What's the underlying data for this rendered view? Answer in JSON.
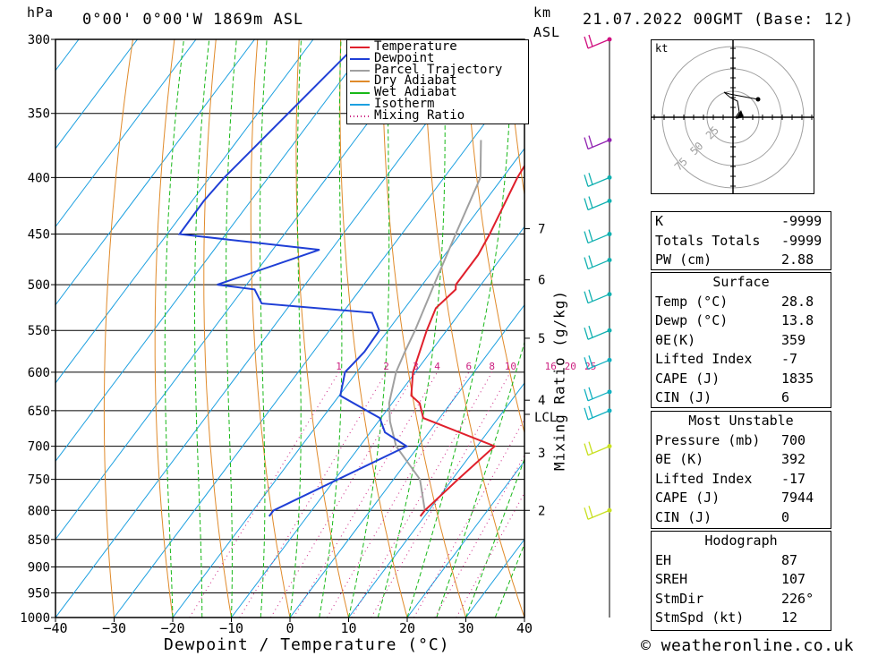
{
  "header": {
    "hpa": "hPa",
    "location": "0°00' 0°00'W 1869m ASL",
    "km": "km",
    "asl": "ASL",
    "datetime": "21.07.2022 00GMT (Base: 12)"
  },
  "footer": {
    "xaxis_label": "Dewpoint / Temperature (°C)",
    "mixing_label": "Mixing Ratio (g/kg)",
    "credit": "© weatheronline.co.uk"
  },
  "colors": {
    "temperature": "#e0202c",
    "dewpoint": "#1f3fd6",
    "parcel": "#a0a0a0",
    "dry_adiabat": "#e08a2a",
    "wet_adiabat": "#18b818",
    "isotherm": "#1ca0e0",
    "mixing": "#cc2080"
  },
  "chart_data": {
    "type": "line",
    "title": "0°00' 0°00'W 1869m ASL",
    "xlabel": "Dewpoint / Temperature (°C)",
    "ylabel": "hPa",
    "xlim": [
      -40,
      40
    ],
    "ylim": [
      1000,
      300
    ],
    "x_ticks": [
      -40,
      -30,
      -20,
      -10,
      0,
      10,
      20,
      30,
      40
    ],
    "p_levels": [
      300,
      350,
      400,
      450,
      500,
      550,
      600,
      650,
      700,
      750,
      800,
      850,
      900,
      950,
      1000
    ],
    "legend": [
      "Temperature",
      "Dewpoint",
      "Parcel Trajectory",
      "Dry Adiabat",
      "Wet Adiabat",
      "Isotherm",
      "Mixing Ratio"
    ],
    "series": [
      {
        "name": "Temperature",
        "points": [
          [
            -18.4,
            370
          ],
          [
            -17.5,
            400
          ],
          [
            -15,
            450
          ],
          [
            -14.3,
            470
          ],
          [
            -14.3,
            500
          ],
          [
            -13.7,
            505
          ],
          [
            -14.7,
            525
          ],
          [
            -13.4,
            550
          ],
          [
            -10.4,
            600
          ],
          [
            -7.7,
            630
          ],
          [
            -5.3,
            640
          ],
          [
            -2.8,
            660
          ],
          [
            13,
            700
          ],
          [
            11,
            750
          ],
          [
            9.3,
            800
          ],
          [
            9.3,
            810
          ]
        ]
      },
      {
        "name": "Dewpoint",
        "points": [
          [
            -61.7,
            300
          ],
          [
            -67.5,
            400
          ],
          [
            -68,
            420
          ],
          [
            -67.9,
            450
          ],
          [
            -42,
            465
          ],
          [
            -55,
            500
          ],
          [
            -48,
            505
          ],
          [
            -45,
            520
          ],
          [
            -25,
            530
          ],
          [
            -21.5,
            550
          ],
          [
            -21.3,
            575
          ],
          [
            -22,
            600
          ],
          [
            -19.8,
            630
          ],
          [
            -10.2,
            660
          ],
          [
            -7.5,
            680
          ],
          [
            -2,
            700
          ],
          [
            -16.5,
            800
          ],
          [
            -16.5,
            810
          ]
        ]
      },
      {
        "name": "Parcel Trajectory",
        "points": [
          [
            -28.5,
            370
          ],
          [
            -23.8,
            400
          ],
          [
            -20.8,
            450
          ],
          [
            -18,
            500
          ],
          [
            -15.4,
            550
          ],
          [
            -14.4,
            575
          ],
          [
            -13.3,
            600
          ],
          [
            -10.5,
            640
          ],
          [
            -8,
            665
          ],
          [
            -3.8,
            700
          ],
          [
            4.5,
            750
          ],
          [
            9.3,
            800
          ],
          [
            9.3,
            810
          ]
        ]
      }
    ],
    "mixing_ratio_labels": [
      "1",
      "2",
      "3",
      "4",
      "6",
      "8",
      "10",
      "16",
      "20",
      "25"
    ],
    "mixing_ratio_values": [
      1,
      2,
      3,
      4,
      6,
      8,
      10,
      16,
      20,
      25
    ],
    "km_ticks": [
      {
        "label": "7",
        "p": 445
      },
      {
        "label": "6",
        "p": 495
      },
      {
        "label": "5",
        "p": 559
      },
      {
        "label": "4",
        "p": 636
      },
      {
        "label": "3",
        "p": 710
      },
      {
        "label": "2",
        "p": 800
      }
    ],
    "lcl_label": "LCL",
    "lcl_p": 655,
    "wind_barb_p": [
      300,
      370,
      400,
      420,
      450,
      475,
      510,
      550,
      585,
      625,
      650,
      700,
      800
    ],
    "grid": true
  },
  "hodograph": {
    "unit": "kt",
    "ring_labels": [
      "25",
      "50",
      "75"
    ]
  },
  "indices": {
    "rows": [
      {
        "label": "K",
        "value": "-9999"
      },
      {
        "label": "Totals Totals",
        "value": "-9999"
      },
      {
        "label": "PW (cm)",
        "value": "2.88"
      }
    ]
  },
  "surface": {
    "title": "Surface",
    "rows": [
      {
        "label": "Temp (°C)",
        "value": "28.8"
      },
      {
        "label": "Dewp (°C)",
        "value": "13.8"
      },
      {
        "label": "θE(K)",
        "value": "359"
      },
      {
        "label": "Lifted Index",
        "value": "-7"
      },
      {
        "label": "CAPE (J)",
        "value": "1835"
      },
      {
        "label": "CIN (J)",
        "value": "6"
      }
    ]
  },
  "most_unstable": {
    "title": "Most Unstable",
    "rows": [
      {
        "label": "Pressure (mb)",
        "value": "700"
      },
      {
        "label": "θE (K)",
        "value": "392"
      },
      {
        "label": "Lifted Index",
        "value": "-17"
      },
      {
        "label": "CAPE (J)",
        "value": "7944"
      },
      {
        "label": "CIN (J)",
        "value": "0"
      }
    ]
  },
  "hodograph_table": {
    "title": "Hodograph",
    "rows": [
      {
        "label": "EH",
        "value": "87"
      },
      {
        "label": "SREH",
        "value": "107"
      },
      {
        "label": "StmDir",
        "value": "226°"
      },
      {
        "label": "StmSpd (kt)",
        "value": "12"
      }
    ]
  }
}
